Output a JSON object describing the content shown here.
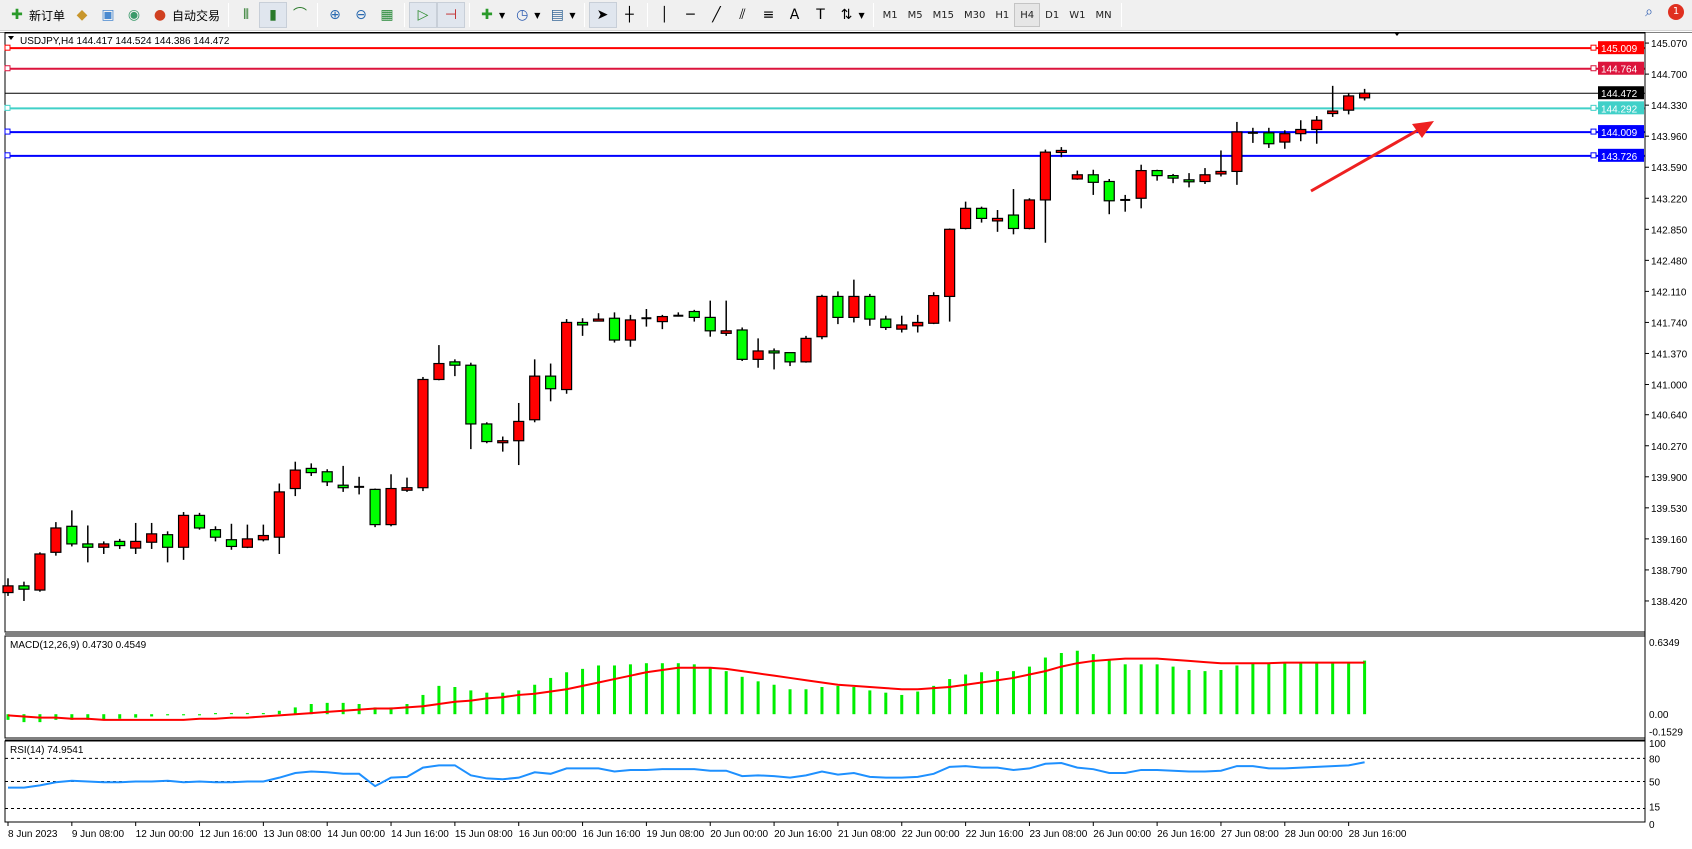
{
  "toolbar": {
    "new_order": "新订单",
    "auto_trading": "自动交易",
    "timeframes": [
      "M1",
      "M5",
      "M15",
      "M30",
      "H1",
      "H4",
      "D1",
      "W1",
      "MN"
    ],
    "active_timeframe": "H4",
    "notification_count": "1"
  },
  "chart": {
    "symbol_label": "USDJPY,H4  144.417 144.524 144.386 144.472",
    "colors": {
      "bull": "#ff0000",
      "bear": "#00ff00",
      "macd_hist": "#00ee00",
      "signal": "#ff0000",
      "rsi": "#1e90ff"
    },
    "price_labels": [
      "145.070",
      "144.700",
      "144.330",
      "143.960",
      "143.590",
      "143.220",
      "142.850",
      "142.480",
      "142.110",
      "141.740",
      "141.370",
      "141.000",
      "140.640",
      "140.270",
      "139.900",
      "139.530",
      "139.160",
      "138.790",
      "138.420"
    ],
    "levels": [
      {
        "value": "145.009",
        "color": "#ff0000"
      },
      {
        "value": "144.764",
        "color": "#dc143c"
      },
      {
        "value": "144.472",
        "color": "#000000"
      },
      {
        "value": "144.292",
        "color": "#40d0c8"
      },
      {
        "value": "144.009",
        "color": "#0000ff"
      },
      {
        "value": "143.726",
        "color": "#0000ff"
      }
    ],
    "time_labels": [
      "8 Jun 2023",
      "9 Jun 08:00",
      "12 Jun 00:00",
      "12 Jun 16:00",
      "13 Jun 08:00",
      "14 Jun 00:00",
      "14 Jun 16:00",
      "15 Jun 08:00",
      "16 Jun 00:00",
      "16 Jun 16:00",
      "19 Jun 08:00",
      "20 Jun 00:00",
      "20 Jun 16:00",
      "21 Jun 08:00",
      "22 Jun 00:00",
      "22 Jun 16:00",
      "23 Jun 08:00",
      "26 Jun 00:00",
      "26 Jun 16:00",
      "27 Jun 08:00",
      "28 Jun 00:00",
      "28 Jun 16:00"
    ],
    "annotation": "red-arrow-up-right"
  },
  "chart_data": [
    {
      "type": "candlestick",
      "ylim": [
        138.05,
        145.19
      ],
      "ohlc": [
        [
          138.52,
          138.69,
          138.48,
          138.6
        ],
        [
          138.6,
          138.65,
          138.42,
          138.56
        ],
        [
          138.55,
          139.0,
          138.53,
          138.98
        ],
        [
          139.0,
          139.36,
          138.96,
          139.29
        ],
        [
          139.31,
          139.5,
          139.07,
          139.1
        ],
        [
          139.1,
          139.32,
          138.88,
          139.06
        ],
        [
          139.06,
          139.13,
          138.98,
          139.1
        ],
        [
          139.13,
          139.16,
          139.04,
          139.08
        ],
        [
          139.05,
          139.35,
          138.98,
          139.13
        ],
        [
          139.12,
          139.35,
          139.04,
          139.22
        ],
        [
          139.21,
          139.25,
          138.88,
          139.06
        ],
        [
          139.06,
          139.48,
          138.91,
          139.44
        ],
        [
          139.44,
          139.47,
          139.27,
          139.29
        ],
        [
          139.27,
          139.31,
          139.13,
          139.18
        ],
        [
          139.15,
          139.34,
          139.03,
          139.07
        ],
        [
          139.06,
          139.33,
          139.05,
          139.16
        ],
        [
          139.15,
          139.33,
          139.13,
          139.2
        ],
        [
          139.18,
          139.82,
          138.98,
          139.72
        ],
        [
          139.76,
          140.08,
          139.67,
          139.98
        ],
        [
          140.0,
          140.06,
          139.91,
          139.95
        ],
        [
          139.96,
          139.99,
          139.79,
          139.84
        ],
        [
          139.8,
          140.03,
          139.72,
          139.77
        ],
        [
          139.78,
          139.9,
          139.69,
          139.78
        ],
        [
          139.75,
          139.76,
          139.3,
          139.33
        ],
        [
          139.33,
          139.93,
          139.31,
          139.76
        ],
        [
          139.74,
          139.89,
          139.72,
          139.77
        ],
        [
          139.77,
          141.09,
          139.73,
          141.06
        ],
        [
          141.06,
          141.47,
          141.05,
          141.25
        ],
        [
          141.27,
          141.3,
          141.1,
          141.23
        ],
        [
          141.23,
          141.26,
          140.23,
          140.53
        ],
        [
          140.53,
          140.55,
          140.3,
          140.32
        ],
        [
          140.32,
          140.38,
          140.2,
          140.33
        ],
        [
          140.33,
          140.78,
          140.04,
          140.56
        ],
        [
          140.58,
          141.3,
          140.55,
          141.1
        ],
        [
          141.1,
          141.25,
          140.8,
          140.95
        ],
        [
          140.94,
          141.78,
          140.89,
          141.74
        ],
        [
          141.74,
          141.79,
          141.58,
          141.71
        ],
        [
          141.77,
          141.85,
          141.77,
          141.78
        ],
        [
          141.79,
          141.86,
          141.5,
          141.53
        ],
        [
          141.53,
          141.83,
          141.45,
          141.77
        ],
        [
          141.79,
          141.9,
          141.69,
          141.79
        ],
        [
          141.75,
          141.83,
          141.66,
          141.81
        ],
        [
          141.82,
          141.86,
          141.81,
          141.82
        ],
        [
          141.87,
          141.89,
          141.75,
          141.8
        ],
        [
          141.8,
          142.0,
          141.57,
          141.64
        ],
        [
          141.61,
          142.0,
          141.58,
          141.64
        ],
        [
          141.65,
          141.68,
          141.28,
          141.3
        ],
        [
          141.3,
          141.55,
          141.2,
          141.4
        ],
        [
          141.4,
          141.43,
          141.18,
          141.38
        ],
        [
          141.38,
          141.38,
          141.22,
          141.27
        ],
        [
          141.27,
          141.58,
          141.26,
          141.55
        ],
        [
          141.57,
          142.07,
          141.54,
          142.05
        ],
        [
          142.05,
          142.11,
          141.72,
          141.8
        ],
        [
          141.8,
          142.25,
          141.74,
          142.05
        ],
        [
          142.05,
          142.08,
          141.7,
          141.78
        ],
        [
          141.78,
          141.82,
          141.65,
          141.68
        ],
        [
          141.66,
          141.82,
          141.62,
          141.71
        ],
        [
          141.7,
          141.83,
          141.62,
          141.74
        ],
        [
          141.73,
          142.1,
          141.72,
          142.06
        ],
        [
          142.05,
          142.86,
          141.75,
          142.85
        ],
        [
          142.86,
          143.18,
          142.85,
          143.1
        ],
        [
          143.1,
          143.12,
          142.93,
          142.98
        ],
        [
          142.95,
          143.08,
          142.82,
          142.98
        ],
        [
          143.02,
          143.33,
          142.79,
          142.86
        ],
        [
          142.86,
          143.22,
          142.85,
          143.2
        ],
        [
          143.2,
          143.8,
          142.69,
          143.77
        ],
        [
          143.77,
          143.83,
          143.71,
          143.79
        ],
        [
          143.45,
          143.55,
          143.44,
          143.5
        ],
        [
          143.5,
          143.56,
          143.26,
          143.41
        ],
        [
          143.42,
          143.45,
          143.03,
          143.19
        ],
        [
          143.2,
          143.26,
          143.06,
          143.2
        ],
        [
          143.22,
          143.62,
          143.1,
          143.55
        ],
        [
          143.55,
          143.56,
          143.43,
          143.49
        ],
        [
          143.49,
          143.51,
          143.4,
          143.46
        ],
        [
          143.44,
          143.52,
          143.35,
          143.42
        ],
        [
          143.42,
          143.58,
          143.39,
          143.5
        ],
        [
          143.51,
          143.79,
          143.48,
          143.54
        ],
        [
          143.54,
          144.13,
          143.38,
          144.01
        ],
        [
          144.0,
          144.06,
          143.88,
          144.0
        ],
        [
          144.0,
          144.06,
          143.82,
          143.87
        ],
        [
          143.89,
          144.03,
          143.81,
          143.99
        ],
        [
          143.99,
          144.15,
          143.9,
          144.04
        ],
        [
          144.04,
          144.2,
          143.87,
          144.15
        ],
        [
          144.23,
          144.56,
          144.19,
          144.26
        ],
        [
          144.27,
          144.47,
          144.22,
          144.44
        ],
        [
          144.417,
          144.524,
          144.386,
          144.472
        ]
      ]
    },
    {
      "type": "bar+line",
      "title": "MACD(12,26,9) 0.4730 0.4549",
      "ylim": [
        -0.21,
        0.69
      ],
      "tick_labels": [
        "0.6349",
        "0.00",
        "-0.1529"
      ],
      "histogram": [
        -0.05,
        -0.07,
        -0.07,
        -0.05,
        -0.05,
        -0.05,
        -0.05,
        -0.04,
        -0.03,
        -0.02,
        -0.01,
        -0.01,
        -0.01,
        0.01,
        0.01,
        0.01,
        0.01,
        0.03,
        0.06,
        0.09,
        0.1,
        0.1,
        0.09,
        0.06,
        0.06,
        0.09,
        0.17,
        0.25,
        0.24,
        0.21,
        0.19,
        0.19,
        0.21,
        0.26,
        0.32,
        0.37,
        0.4,
        0.43,
        0.43,
        0.44,
        0.45,
        0.45,
        0.45,
        0.44,
        0.41,
        0.38,
        0.33,
        0.29,
        0.26,
        0.22,
        0.22,
        0.24,
        0.25,
        0.24,
        0.21,
        0.19,
        0.17,
        0.2,
        0.25,
        0.31,
        0.35,
        0.37,
        0.38,
        0.38,
        0.42,
        0.5,
        0.54,
        0.56,
        0.53,
        0.48,
        0.44,
        0.44,
        0.44,
        0.42,
        0.39,
        0.38,
        0.39,
        0.43,
        0.45,
        0.45,
        0.45,
        0.45,
        0.46,
        0.46,
        0.46,
        0.473
      ],
      "signal": [
        -0.01,
        -0.02,
        -0.03,
        -0.03,
        -0.04,
        -0.04,
        -0.05,
        -0.05,
        -0.05,
        -0.05,
        -0.05,
        -0.05,
        -0.04,
        -0.04,
        -0.03,
        -0.03,
        -0.02,
        -0.01,
        0.0,
        0.01,
        0.02,
        0.03,
        0.04,
        0.05,
        0.05,
        0.06,
        0.07,
        0.09,
        0.11,
        0.12,
        0.14,
        0.15,
        0.17,
        0.18,
        0.2,
        0.22,
        0.25,
        0.28,
        0.31,
        0.34,
        0.37,
        0.39,
        0.41,
        0.41,
        0.41,
        0.4,
        0.38,
        0.36,
        0.34,
        0.32,
        0.3,
        0.28,
        0.26,
        0.25,
        0.24,
        0.23,
        0.22,
        0.22,
        0.23,
        0.24,
        0.26,
        0.28,
        0.3,
        0.32,
        0.35,
        0.38,
        0.42,
        0.45,
        0.47,
        0.48,
        0.49,
        0.49,
        0.49,
        0.48,
        0.47,
        0.46,
        0.45,
        0.45,
        0.45,
        0.45,
        0.455,
        0.455,
        0.455,
        0.455,
        0.455,
        0.4549
      ]
    },
    {
      "type": "line",
      "title": "RSI(14) 74.9541",
      "ylim": [
        0,
        100
      ],
      "levels": [
        80,
        50,
        15
      ],
      "tick_labels": [
        "100",
        "80",
        "50",
        "15",
        "0"
      ],
      "values": [
        42,
        42,
        45,
        49,
        51,
        50,
        49,
        49,
        50,
        50,
        51,
        49,
        50,
        49,
        49,
        50,
        50,
        55,
        61,
        63,
        62,
        60,
        60,
        44,
        55,
        56,
        68,
        71,
        71,
        58,
        54,
        53,
        55,
        62,
        60,
        67,
        67,
        67,
        63,
        65,
        65,
        66,
        66,
        66,
        64,
        64,
        57,
        58,
        57,
        55,
        58,
        63,
        59,
        61,
        56,
        55,
        55,
        56,
        60,
        69,
        70,
        68,
        68,
        65,
        67,
        73,
        74,
        68,
        66,
        61,
        61,
        65,
        65,
        64,
        63,
        63,
        64,
        70,
        70,
        67,
        67,
        68,
        69,
        70,
        71,
        74.95
      ]
    }
  ]
}
